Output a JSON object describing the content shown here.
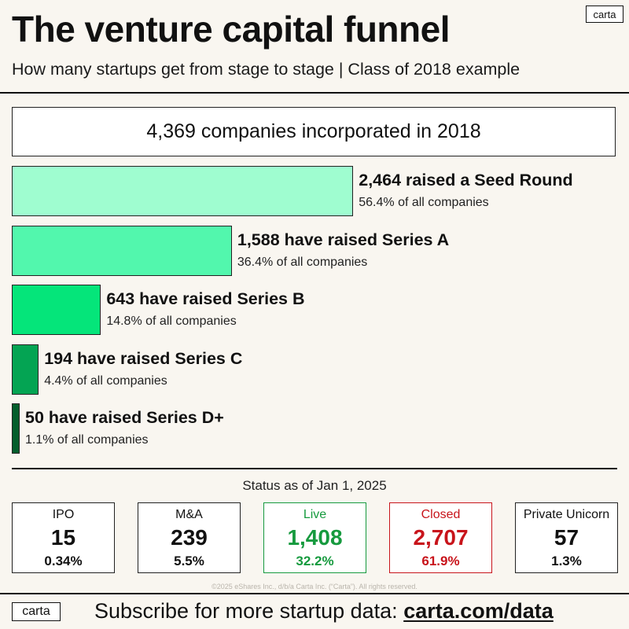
{
  "brand": {
    "logo": "carta"
  },
  "header": {
    "title": "The venture capital funnel",
    "subtitle": "How many startups get from stage to stage  |  Class of 2018 example"
  },
  "chart_data": {
    "type": "bar",
    "orientation": "horizontal",
    "title": "The venture capital funnel",
    "total": {
      "value": 4369,
      "label": "4,369 companies incorporated in 2018"
    },
    "stages": [
      {
        "value": 2464,
        "pct": 56.4,
        "label": "2,464 raised a Seed Round",
        "sub": "56.4% of all companies",
        "color": "#9ffdd0"
      },
      {
        "value": 1588,
        "pct": 36.4,
        "label": "1,588 have raised Series A",
        "sub": "36.4% of all companies",
        "color": "#52f7ad"
      },
      {
        "value": 643,
        "pct": 14.8,
        "label": "643 have raised Series B",
        "sub": "14.8% of all companies",
        "color": "#05e57a"
      },
      {
        "value": 194,
        "pct": 4.4,
        "label": "194 have raised Series C",
        "sub": "4.4% of all companies",
        "color": "#04a453"
      },
      {
        "value": 50,
        "pct": 1.1,
        "label": "50 have raised Series D+",
        "sub": "1.1% of all companies",
        "color": "#045e2d"
      }
    ]
  },
  "status": {
    "label": "Status as of Jan 1, 2025",
    "cards": [
      {
        "label": "IPO",
        "count": "15",
        "pct": "0.34%",
        "color": "#111111",
        "border": "#222222"
      },
      {
        "label": "M&A",
        "count": "239",
        "pct": "5.5%",
        "color": "#111111",
        "border": "#222222"
      },
      {
        "label": "Live",
        "count": "1,408",
        "pct": "32.2%",
        "color": "#169a3e",
        "border": "#169a3e"
      },
      {
        "label": "Closed",
        "count": "2,707",
        "pct": "61.9%",
        "color": "#c8141b",
        "border": "#c8141b"
      },
      {
        "label": "Private Unicorn",
        "count": "57",
        "pct": "1.3%",
        "color": "#111111",
        "border": "#222222"
      }
    ]
  },
  "footer": {
    "copyright": "©2025 eShares Inc., d/b/a Carta Inc. (“Carta”). All rights reserved.",
    "subscribe_text": "Subscribe for more startup data: ",
    "subscribe_link": "carta.com/data"
  }
}
